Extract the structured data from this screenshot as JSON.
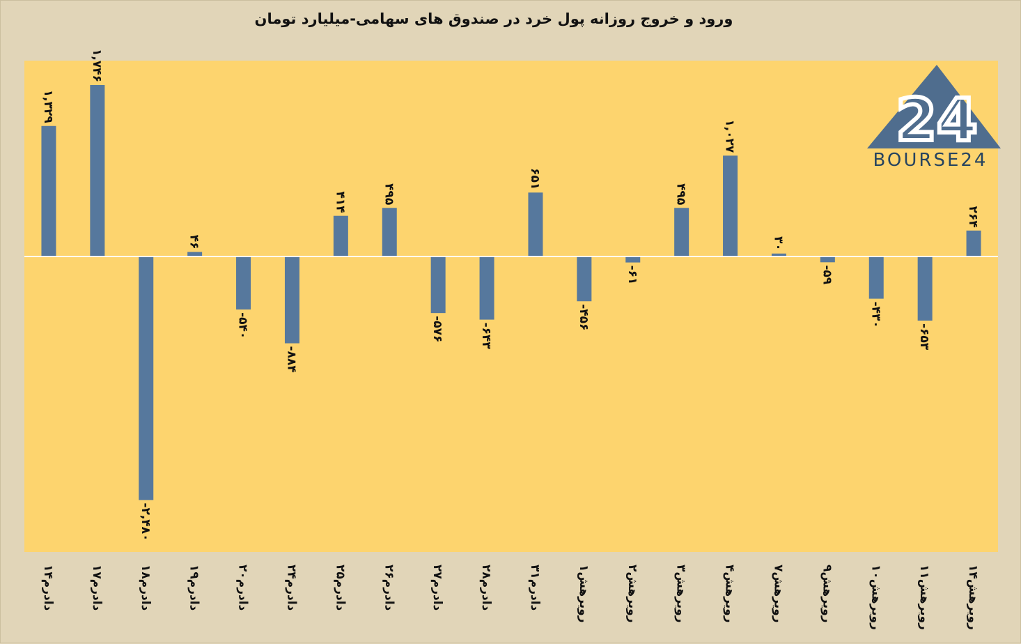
{
  "chart_data": {
    "type": "bar",
    "title": "ورود و خروج روزانه پول خرد در صندوق های سهامی-میلیارد تومان",
    "categories": [
      "۱۴مرداد",
      "۱۷مرداد",
      "۱۸مرداد",
      "۱۹مرداد",
      "۲۰مرداد",
      "۲۴مرداد",
      "۲۵مرداد",
      "۲۶مرداد",
      "۲۷مرداد",
      "۲۸مرداد",
      "۳۱مرداد",
      "۱شهریور",
      "۲شهریور",
      "۳شهریور",
      "۴شهریور",
      "۷شهریور",
      "۹شهریور",
      "۱۰شهریور",
      "۱۱شهریور",
      "۱۴شهریور"
    ],
    "values": [
      1329,
      1746,
      -2480,
      46,
      -540,
      -884,
      414,
      495,
      -576,
      -643,
      651,
      -456,
      -61,
      495,
      1027,
      30,
      -59,
      -430,
      -653,
      264
    ],
    "value_labels": [
      "۱,۳۲۹",
      "۱,۷۴۶",
      "-۲,۴۸۰",
      "۴۶",
      "-۵۴۰",
      "-۸۸۴",
      "۴۱۴",
      "۴۹۵",
      "-۵۷۶",
      "-۶۴۳",
      "۶۵۱",
      "-۴۵۶",
      "-۶۱",
      "۴۹۵",
      "۱,۰۲۷",
      "۳۰",
      "-۵۹",
      "-۴۳۰",
      "-۶۵۳",
      "۲۶۴"
    ],
    "ylim": [
      -2480,
      1746
    ],
    "grid": false,
    "legend": "none",
    "colors": {
      "bar": "#56789d",
      "plot_bg": "#fdd46e",
      "page_bg": "#e1d5b8",
      "zero_line": "#ffffff"
    }
  },
  "logo": {
    "text": "BOURSE24",
    "mark": "24",
    "colors": {
      "triangle": "#4f6d8e",
      "mark": "#ffffff",
      "text": "#27445f"
    }
  }
}
